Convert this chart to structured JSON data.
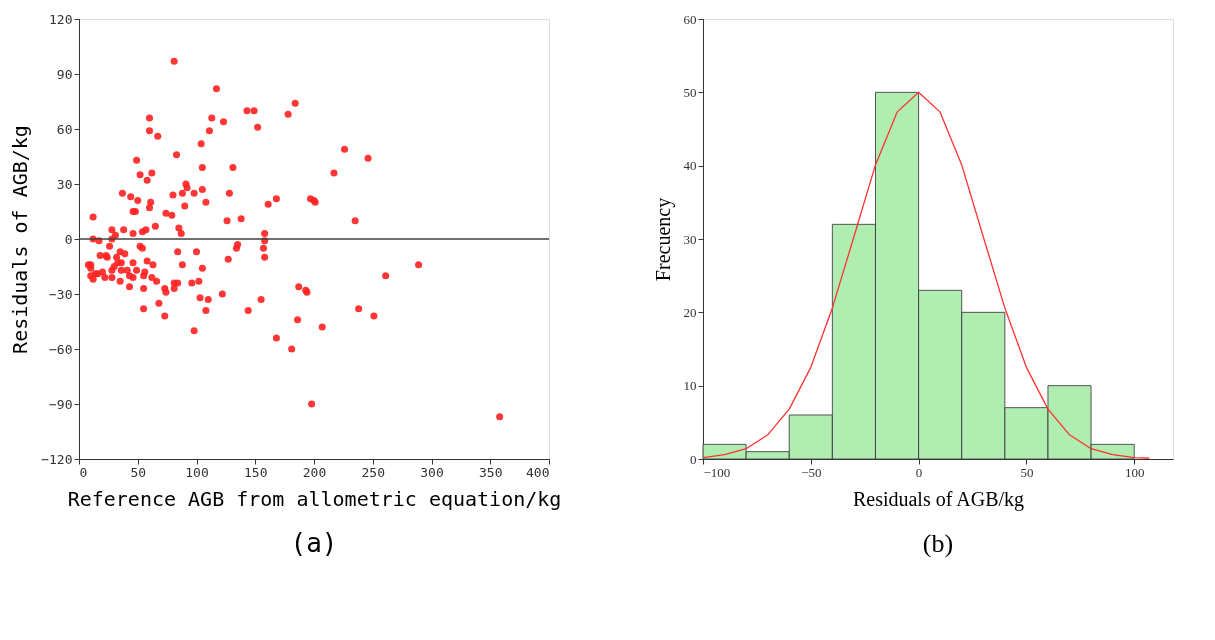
{
  "chart_data": [
    {
      "type": "scatter",
      "xlabel": "Reference AGB from allometric equation/kg",
      "ylabel": "Residuals of AGB/kg",
      "annotations": [
        "(a)"
      ],
      "color": "#ff2020",
      "marker": "circle",
      "grid": false,
      "xlim": [
        0,
        400
      ],
      "xticks": [
        0,
        50,
        100,
        150,
        200,
        250,
        300,
        350,
        400
      ],
      "ylim": [
        -120,
        120
      ],
      "yticks": [
        -120,
        -90,
        -60,
        -30,
        0,
        30,
        60,
        90,
        120
      ],
      "ref_lines": [
        {
          "axis": "y",
          "value": 0,
          "label": null,
          "color": "#404040"
        }
      ],
      "x": [
        81,
        117,
        184,
        178,
        143,
        149,
        152,
        60,
        60,
        67,
        113,
        123,
        111,
        104,
        83,
        49,
        52,
        62,
        58,
        105,
        131,
        91,
        92,
        88,
        80,
        98,
        105,
        128,
        37,
        44,
        50,
        61,
        60,
        108,
        90,
        161,
        168,
        197,
        200,
        46,
        48,
        74,
        79,
        12,
        126,
        138,
        28,
        38,
        57,
        65,
        85,
        87,
        46,
        54,
        31,
        158,
        12,
        17,
        28,
        26,
        52,
        54,
        158,
        135,
        134,
        157,
        158,
        84,
        100,
        127,
        18,
        23,
        24,
        35,
        39,
        8,
        10,
        10,
        32,
        33,
        36,
        46,
        58,
        63,
        88,
        105,
        30,
        28,
        36,
        41,
        49,
        56,
        20,
        16,
        14,
        10,
        12,
        22,
        28,
        43,
        46,
        55,
        62,
        35,
        43,
        66,
        55,
        73,
        74,
        81,
        84,
        81,
        96,
        102,
        103,
        110,
        108,
        122,
        144,
        155,
        55,
        68,
        73,
        98,
        168,
        181,
        186,
        187,
        193,
        194,
        198,
        226,
        246,
        217,
        201,
        235,
        289,
        261,
        238,
        251,
        207,
        358
      ],
      "values": [
        97,
        82,
        74,
        68,
        70,
        70,
        61,
        66,
        59,
        56,
        66,
        64,
        59,
        52,
        46,
        43,
        35,
        36,
        32,
        39,
        39,
        30,
        28,
        25,
        24,
        25,
        27,
        25,
        25,
        23,
        21,
        20,
        17,
        20,
        18,
        19,
        22,
        22,
        21,
        15,
        15,
        14,
        13,
        12,
        10,
        11,
        5,
        5,
        5,
        7,
        6,
        3,
        3,
        4,
        2,
        3,
        0,
        -1,
        0,
        -4,
        -4,
        -5,
        -1,
        -3,
        -5,
        -5,
        -10,
        -7,
        -7,
        -11,
        -9,
        -9,
        -10,
        -7,
        -8,
        -14,
        -14,
        -16,
        -10,
        -13,
        -13,
        -13,
        -12,
        -14,
        -14,
        -16,
        -15,
        -17,
        -17,
        -17,
        -17,
        -18,
        -18,
        -19,
        -19,
        -20,
        -22,
        -21,
        -21,
        -20,
        -21,
        -20,
        -21,
        -23,
        -26,
        -23,
        -27,
        -27,
        -29,
        -24,
        -24,
        -27,
        -24,
        -23,
        -32,
        -33,
        -39,
        -30,
        -39,
        -33,
        -38,
        -35,
        -42,
        -50,
        -54,
        -60,
        -44,
        -26,
        -28,
        -29,
        -90,
        49,
        44,
        36,
        20,
        10,
        -14,
        -20,
        -38,
        -42,
        -48,
        -97
      ]
    },
    {
      "type": "histogram",
      "xlabel": "Residuals of AGB/kg",
      "ylabel": "Frecuency",
      "annotations": [
        "(b)"
      ],
      "color": "#a8eca8",
      "grid": false,
      "xlim": [
        -100,
        118
      ],
      "xticks": [
        -100,
        -50,
        0,
        50,
        100
      ],
      "ylim": [
        0,
        60
      ],
      "yticks": [
        0,
        10,
        20,
        30,
        40,
        50,
        60
      ],
      "bins": [
        -100,
        -80,
        -60,
        -40,
        -20,
        0,
        20,
        40,
        60,
        80,
        100
      ],
      "values": [
        2,
        1,
        6,
        32,
        50,
        23,
        20,
        7,
        10,
        2
      ],
      "series": [
        {
          "type": "line",
          "color": "#ff3030",
          "x": [
            -100,
            -90,
            -80,
            -70,
            -60,
            -50,
            -40,
            -30,
            -20,
            -10,
            0,
            10,
            20,
            30,
            40,
            50,
            60,
            70,
            80,
            90,
            100,
            107
          ],
          "values": [
            0.2,
            0.6,
            1.4,
            3.3,
            6.8,
            12.5,
            20.6,
            30.3,
            40.1,
            47.3,
            50,
            47.3,
            40.1,
            30.3,
            20.6,
            12.5,
            6.8,
            3.3,
            1.4,
            0.6,
            0.2,
            0.1
          ]
        }
      ]
    }
  ]
}
